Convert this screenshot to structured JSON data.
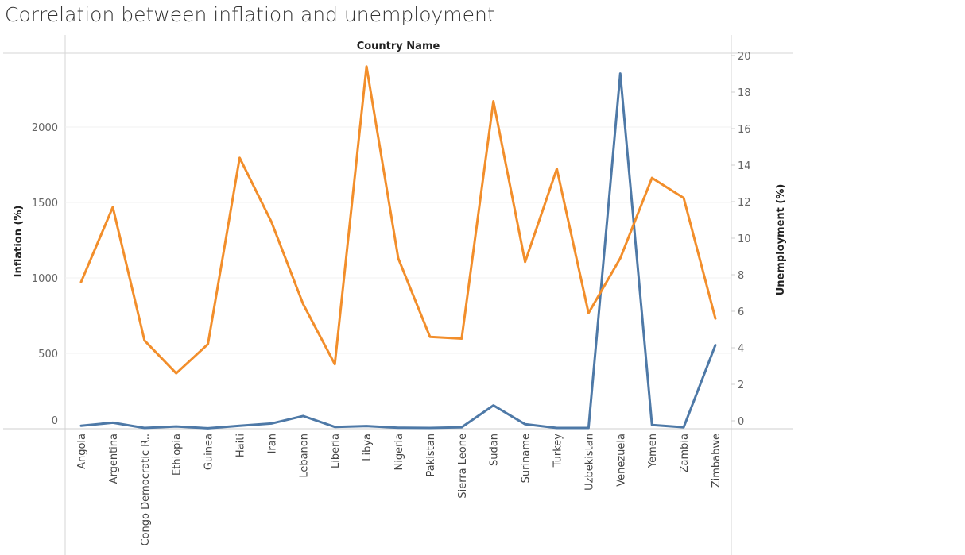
{
  "title": "Correlation between inflation and unemployment",
  "chart_data": {
    "type": "line",
    "header": "Country Name",
    "categories": [
      "Angola",
      "Argentina",
      "Congo Democratic R..",
      "Ethiopia",
      "Guinea",
      "Haiti",
      "Iran",
      "Lebanon",
      "Liberia",
      "Libya",
      "Nigeria",
      "Pakistan",
      "Sierra Leone",
      "Sudan",
      "Suriname",
      "Turkey",
      "Uzbekistan",
      "Venezuela",
      "Yemen",
      "Zambia",
      "Zimbabwe"
    ],
    "y_left": {
      "label": "Inflation (%)",
      "ticks": [
        0,
        500,
        1000,
        1500,
        2000
      ]
    },
    "y_right": {
      "label": "Unemployment (%)",
      "ticks": [
        0,
        2,
        4,
        6,
        8,
        10,
        12,
        14,
        16,
        18,
        20
      ]
    },
    "series": [
      {
        "color": "#4e79a7",
        "axis": "left",
        "values": [
          20,
          40,
          5,
          15,
          3,
          20,
          35,
          85,
          12,
          18,
          7,
          5,
          10,
          155,
          30,
          5,
          5,
          2355,
          25,
          10,
          555
        ]
      },
      {
        "color": "#f28e2b",
        "axis": "right",
        "values": [
          7.6,
          11.7,
          4.4,
          2.6,
          4.2,
          14.4,
          10.9,
          6.4,
          3.1,
          19.4,
          8.9,
          4.6,
          4.5,
          17.5,
          8.7,
          13.8,
          5.9,
          8.9,
          13.3,
          12.2,
          5.6
        ]
      }
    ]
  }
}
